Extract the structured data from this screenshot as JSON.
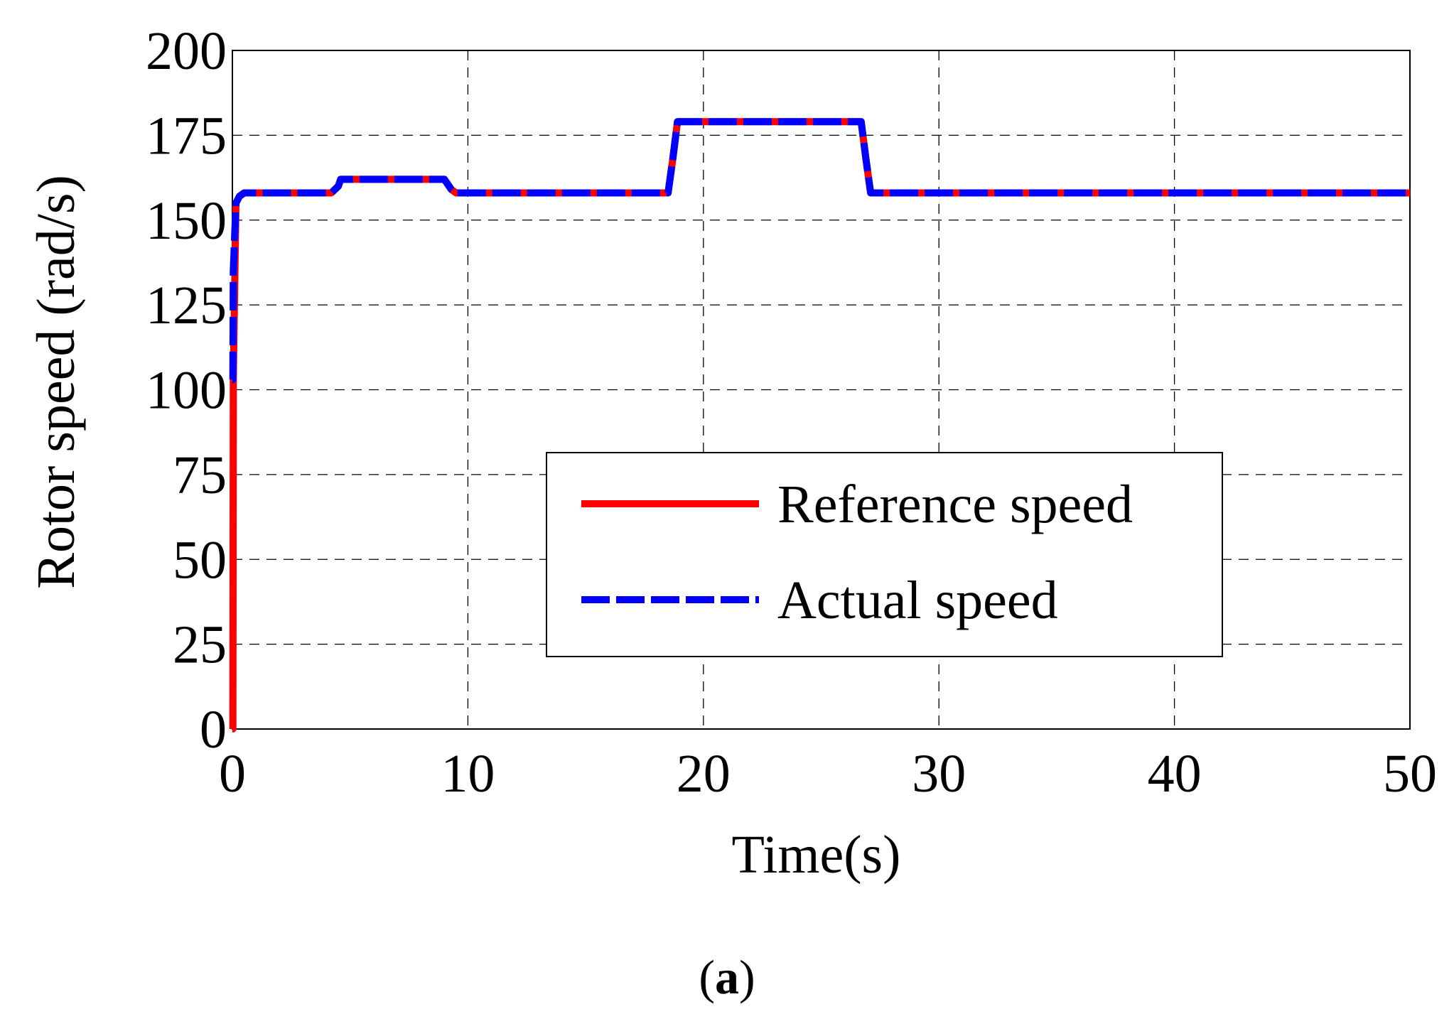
{
  "chart_data": {
    "type": "line",
    "title": "",
    "xlabel": "Time(s)",
    "ylabel": "Rotor speed (rad/s)",
    "xlim": [
      0,
      50
    ],
    "ylim": [
      0,
      200
    ],
    "xticks": [
      0,
      10,
      20,
      30,
      40,
      50
    ],
    "yticks": [
      0,
      25,
      50,
      75,
      100,
      125,
      150,
      175,
      200
    ],
    "xtick_labels": [
      "0",
      "10",
      "20",
      "30",
      "40",
      "50"
    ],
    "ytick_labels": [
      "0",
      "25",
      "50",
      "75",
      "100",
      "125",
      "150",
      "175",
      "200"
    ],
    "grid": true,
    "legend_position": "center-right",
    "series": [
      {
        "name": "Reference speed",
        "color": "#ff0000",
        "style": "solid",
        "x": [
          0,
          0.02,
          0.04,
          0.15,
          0.3,
          0.5,
          4.2,
          4.5,
          4.6,
          9.0,
          9.3,
          9.5,
          18.5,
          18.7,
          18.9,
          26.7,
          26.9,
          27.1,
          50
        ],
        "y": [
          0,
          0,
          103,
          155,
          157,
          158,
          158,
          160,
          162,
          162,
          159,
          158,
          158,
          168,
          179,
          179,
          168,
          158,
          158
        ]
      },
      {
        "name": "Actual speed",
        "color": "#0000ff",
        "style": "dashed",
        "x": [
          0,
          0.02,
          0.04,
          0.15,
          0.3,
          0.5,
          4.2,
          4.5,
          4.6,
          9.0,
          9.3,
          9.5,
          18.5,
          18.7,
          18.9,
          26.7,
          26.9,
          27.1,
          50
        ],
        "y": [
          103,
          103,
          135,
          155,
          157,
          158,
          158,
          160,
          162,
          162,
          159,
          158,
          158,
          168,
          179,
          179,
          168,
          158,
          158
        ]
      }
    ]
  },
  "figure": {
    "panel_label_open": "(",
    "panel_label_letter": "a",
    "panel_label_close": ")"
  }
}
